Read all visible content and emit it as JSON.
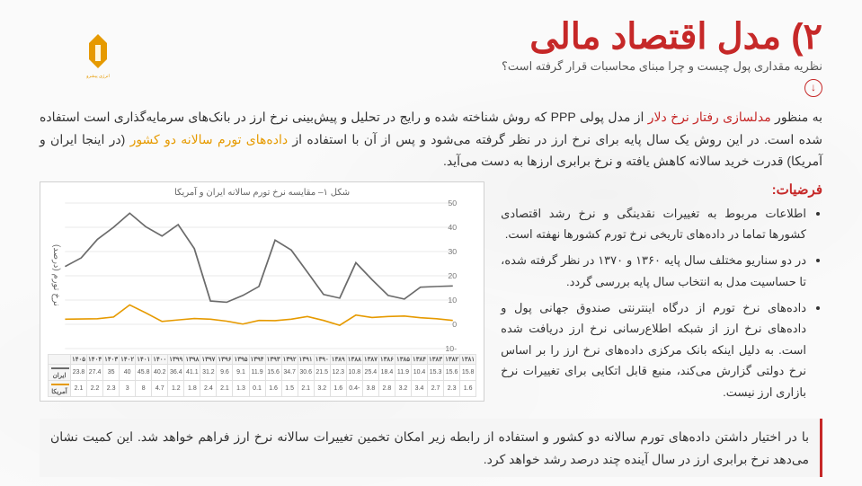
{
  "header": {
    "title": "۲)  مدل اقتصاد مالی",
    "subtitle": "نظریه مقداری پول چیست و چرا مبنای محاسبات قرار گرفته است؟"
  },
  "lead": {
    "p1a": "به منظور ",
    "p1b": "مدلسازی رفتار نرخ دلار",
    "p1c": " از مدل پولی PPP که روش شناخته شده و رایج در تحلیل و پیش‌بینی نرخ ارز در بانک‌های سرمایه‌گذاری است استفاده شده است. در این روش یک سال پایه برای نرخ ارز در نظر گرفته می‌شود و پس از آن با استفاده از ",
    "p1d": "داده‌های تورم سالانه دو کشور",
    "p1e": " (در اینجا ایران و آمریکا) قدرت خرید سالانه کاهش یافته و نرخ برابری ارزها به دست می‌آید."
  },
  "assumptions": {
    "heading": "فرضیات:",
    "items": [
      "اطلاعات مربوط به تغییرات نقدینگی و نرخ رشد اقتصادی کشورها تماما در داده‌های تاریخی نرخ تورم کشورها نهفته است.",
      "در دو سناریو مختلف سال پایه ۱۳۶۰ و ۱۳۷۰ در نظر گرفته شده، تا حساسیت مدل به انتخاب سال پایه بررسی گردد.",
      "داده‌های نرخ تورم از درگاه اینترنتی صندوق جهانی پول و داده‌های نرخ ارز از شبکه اطلاع‌رسانی نرخ ارز دریافت شده است. به دلیل اینکه بانک مرکزی داده‌های نرخ ارز را بر اساس نرخ دولتی گزارش می‌کند، منبع قابل اتکایی برای تغییرات نرخ بازاری ارز نیست."
    ]
  },
  "chart": {
    "title": "شکل ۱– مقایسه نرخ تورم سالانه ایران و آمریکا",
    "yaxis_label": "نرخ تورم (درصد)",
    "ylim": [
      -10,
      50
    ],
    "yticks": [
      -10,
      0,
      10,
      20,
      30,
      40,
      50
    ],
    "years": [
      "۱۳۸۱",
      "۱۳۸۲",
      "۱۳۸۳",
      "۱۳۸۴",
      "۱۳۸۵",
      "۱۳۸۶",
      "۱۳۸۷",
      "۱۳۸۸",
      "۱۳۸۹",
      "۱۳۹۰",
      "۱۳۹۱",
      "۱۳۹۲",
      "۱۳۹۳",
      "۱۳۹۴",
      "۱۳۹۵",
      "۱۳۹۶",
      "۱۳۹۷",
      "۱۳۹۸",
      "۱۳۹۹",
      "۱۴۰۰",
      "۱۴۰۱",
      "۱۴۰۲",
      "۱۴۰۳",
      "۱۴۰۴",
      "۱۴۰۵"
    ],
    "series": {
      "iran": {
        "label": "ایران",
        "color": "#6b6b6b",
        "values": [
          15.8,
          15.6,
          15.3,
          10.4,
          11.9,
          18.4,
          25.4,
          10.8,
          12.3,
          21.5,
          30.6,
          34.7,
          15.6,
          11.9,
          9.1,
          9.6,
          31.2,
          41.1,
          36.4,
          40.2,
          45.8,
          40.0,
          35.0,
          27.4,
          23.8
        ]
      },
      "us": {
        "label": "آمریکا",
        "color": "#e69a00",
        "values": [
          1.6,
          2.3,
          2.7,
          3.4,
          3.2,
          2.8,
          3.8,
          -0.4,
          1.6,
          3.2,
          2.1,
          1.5,
          1.6,
          0.1,
          1.3,
          2.1,
          2.4,
          1.8,
          1.2,
          4.7,
          8.0,
          3.0,
          2.3,
          2.2,
          2.1
        ]
      }
    },
    "cell_labels": {
      "iran": "ایران",
      "us": "آمریکا"
    },
    "grid_color": "#e8e8e8",
    "bg": "#ffffff",
    "line_width": 1.6
  },
  "footer": "با در اختیار داشتن داده‌های تورم سالانه دو کشور و استفاده از رابطه زیر امکان تخمین تغییرات سالانه نرخ ارز فراهم خواهد شد. این کمیت نشان می‌دهد نرخ برابری ارز در سال آینده چند درصد رشد خواهد کرد."
}
